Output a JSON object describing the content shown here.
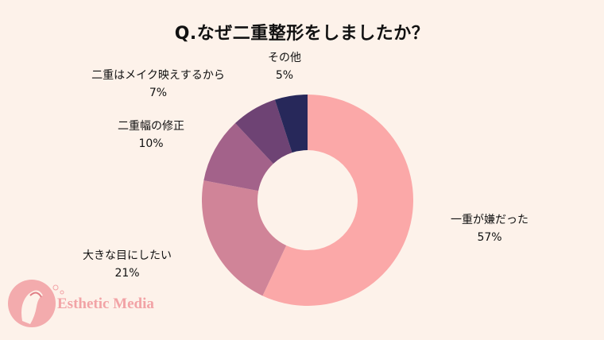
{
  "chart_data": {
    "type": "pie",
    "title": "Q.なぜ二重整形をしましたか？",
    "categories": [
      "一重が嫌だった",
      "大きな目にしたい",
      "二重幅の修正",
      "二重はメイク映えするから",
      "その他"
    ],
    "values": [
      57,
      21,
      10,
      7,
      5
    ],
    "value_labels": [
      "57%",
      "21%",
      "10%",
      "7%",
      "5%"
    ],
    "colors": [
      "#FBA8A8",
      "#D08498",
      "#A3628A",
      "#6E4374",
      "#27285A"
    ]
  },
  "watermark": {
    "text": "Esthetic Media"
  }
}
